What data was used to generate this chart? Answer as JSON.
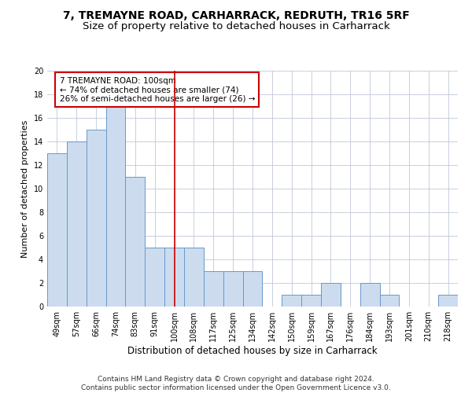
{
  "title": "7, TREMAYNE ROAD, CARHARRACK, REDRUTH, TR16 5RF",
  "subtitle": "Size of property relative to detached houses in Carharrack",
  "xlabel": "Distribution of detached houses by size in Carharrack",
  "ylabel": "Number of detached properties",
  "categories": [
    "49sqm",
    "57sqm",
    "66sqm",
    "74sqm",
    "83sqm",
    "91sqm",
    "100sqm",
    "108sqm",
    "117sqm",
    "125sqm",
    "134sqm",
    "142sqm",
    "150sqm",
    "159sqm",
    "167sqm",
    "176sqm",
    "184sqm",
    "193sqm",
    "201sqm",
    "210sqm",
    "218sqm"
  ],
  "values": [
    13,
    14,
    15,
    17,
    11,
    5,
    5,
    5,
    3,
    3,
    3,
    0,
    1,
    1,
    2,
    0,
    2,
    1,
    0,
    0,
    1
  ],
  "bar_color": "#ccdcee",
  "bar_edge_color": "#6699cc",
  "highlight_index": 6,
  "highlight_line_color": "#cc0000",
  "ylim": [
    0,
    20
  ],
  "yticks": [
    0,
    2,
    4,
    6,
    8,
    10,
    12,
    14,
    16,
    18,
    20
  ],
  "annotation_text": "7 TREMAYNE ROAD: 100sqm\n← 74% of detached houses are smaller (74)\n26% of semi-detached houses are larger (26) →",
  "annotation_box_color": "#ffffff",
  "annotation_box_edge_color": "#cc0000",
  "footer_line1": "Contains HM Land Registry data © Crown copyright and database right 2024.",
  "footer_line2": "Contains public sector information licensed under the Open Government Licence v3.0.",
  "background_color": "#ffffff",
  "grid_color": "#c0c8d8",
  "title_fontsize": 10,
  "subtitle_fontsize": 9.5,
  "xlabel_fontsize": 8.5,
  "ylabel_fontsize": 8,
  "tick_fontsize": 7,
  "footer_fontsize": 6.5,
  "annotation_fontsize": 7.5
}
